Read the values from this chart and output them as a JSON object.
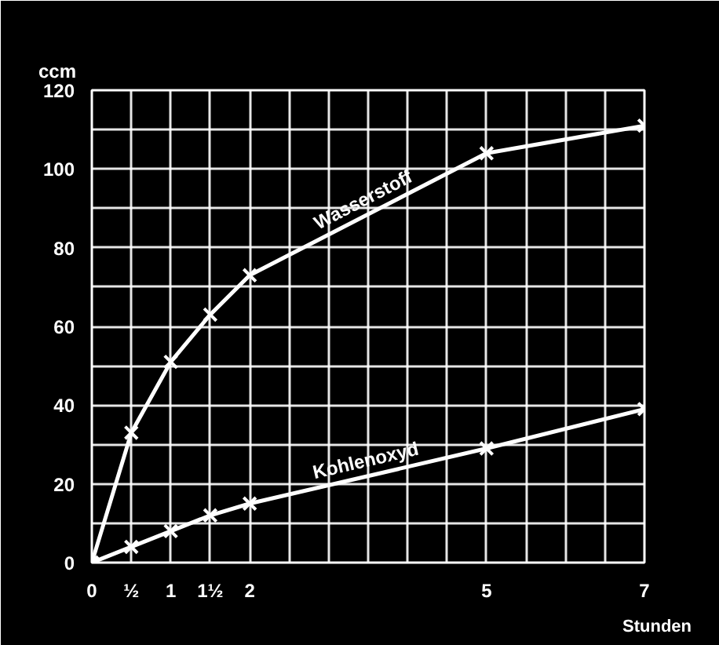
{
  "chart_data": {
    "type": "line",
    "ylabel": "ccm",
    "xlabel": "Stunden",
    "x": [
      0,
      0.5,
      1,
      1.5,
      2,
      5,
      7
    ],
    "series": [
      {
        "name": "Wasserstoff",
        "color": "#ffffff",
        "values": [
          0,
          33,
          51,
          63,
          73,
          104,
          111
        ]
      },
      {
        "name": "Kohlenoxyd",
        "color": "#ffffff",
        "values": [
          0,
          4,
          8,
          12,
          15,
          29,
          39
        ]
      }
    ],
    "xlim": [
      0,
      7
    ],
    "ylim": [
      0,
      120
    ],
    "xticks": [
      0,
      {
        "value": 0.5,
        "label": "½"
      },
      1,
      {
        "value": 1.5,
        "label": "1½"
      },
      2,
      {
        "value": 2.5,
        "label": null
      },
      {
        "value": 3,
        "label": null
      },
      {
        "value": 3.5,
        "label": null
      },
      {
        "value": 4,
        "label": null
      },
      {
        "value": 4.5,
        "label": null
      },
      5,
      {
        "value": 5.5,
        "label": null
      },
      {
        "value": 6,
        "label": null
      },
      {
        "value": 6.5,
        "label": null
      },
      7
    ],
    "yticks": [
      0,
      {
        "value": 10,
        "label": null
      },
      20,
      {
        "value": 30,
        "label": null
      },
      40,
      {
        "value": 50,
        "label": null
      },
      60,
      {
        "value": 70,
        "label": null
      },
      80,
      {
        "value": 90,
        "label": null
      },
      100,
      {
        "value": 110,
        "label": null
      },
      120
    ],
    "grid": true,
    "marker": "cross",
    "line_style": "solid"
  }
}
